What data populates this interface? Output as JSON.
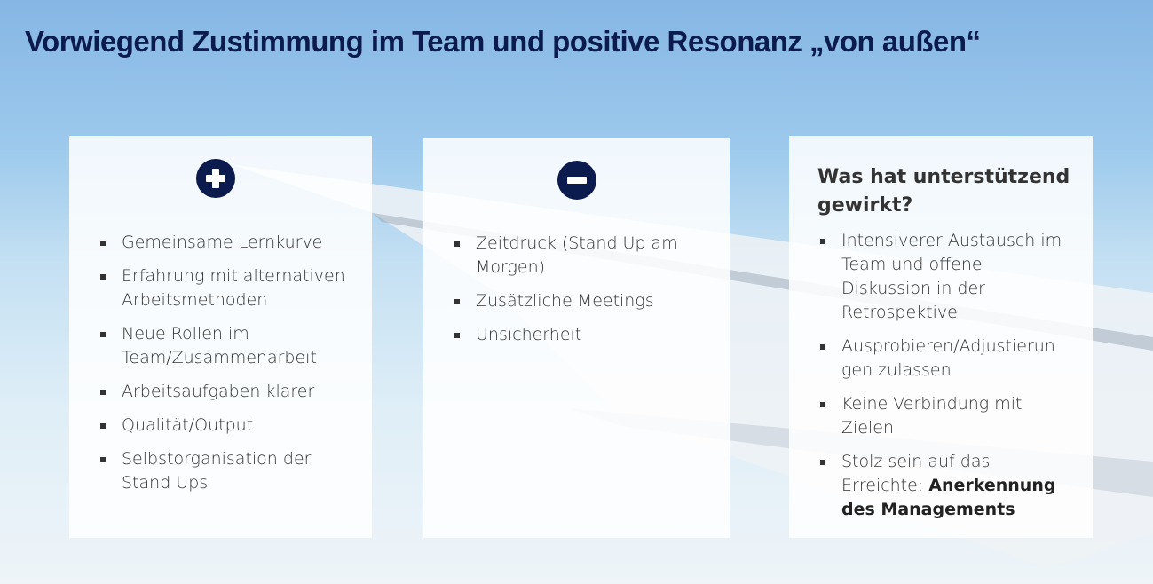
{
  "title": "Vorwiegend Zustimmung im Team und positive Resonanz „von außen“",
  "colors": {
    "accent": "#0b1b4d",
    "text": "#333333"
  },
  "positive": {
    "icon": "plus-circle-icon",
    "items": [
      "Gemeinsame Lernkurve",
      "Erfahrung mit alternativen\nArbeitsmethoden",
      "Neue Rollen im\nTeam/Zusammenarbeit",
      "Arbeitsaufgaben klarer",
      "Qualität/Output",
      "Selbstorganisation der\nStand Ups"
    ]
  },
  "negative": {
    "icon": "minus-circle-icon",
    "items": [
      "Zeitdruck (Stand Up am\nMorgen)",
      "Zusätzliche Meetings",
      "Unsicherheit"
    ]
  },
  "support": {
    "heading": "Was hat unterstützend\ngewirkt?",
    "items": [
      "Intensiverer Austausch im\nTeam und offene\nDiskussion in der\nRetrospektive",
      "Ausprobieren/Adjustierun\ngen zulassen",
      "Keine Verbindung mit\nZielen"
    ],
    "last_item_text": "Stolz sein auf das\nErreichte: ",
    "last_item_bold": "Anerkennung\ndes Managements"
  }
}
